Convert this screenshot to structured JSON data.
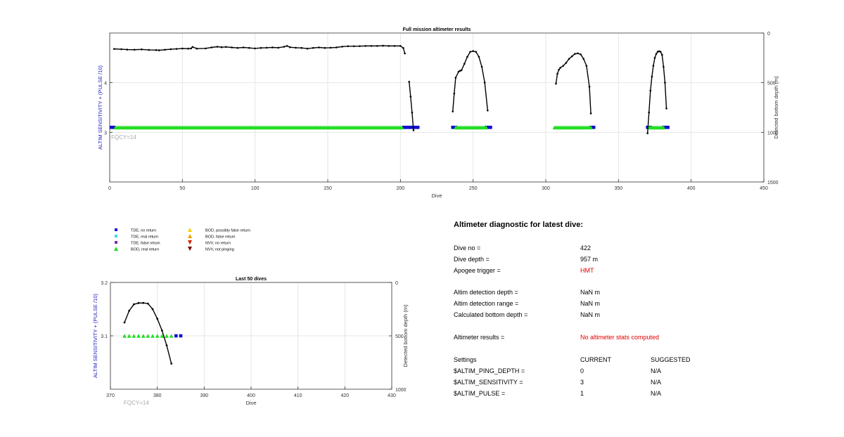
{
  "chart_data": [
    {
      "type": "scatter",
      "title": "Full mission altimeter results",
      "xlabel": "Dive",
      "ylabel": "ALTIM SENSITIVITY + (PULSE /10)",
      "y2label": "Detected bottom depth (m)",
      "xlim": [
        0,
        450
      ],
      "ylim": [
        2,
        5
      ],
      "y2lim": [
        1500,
        0
      ],
      "xticks": [
        0,
        50,
        100,
        150,
        200,
        250,
        300,
        350,
        400,
        450
      ],
      "yticks": [
        3,
        4
      ],
      "y2ticks": [
        0,
        500,
        1000,
        1500
      ],
      "annotation": "FQCY=14",
      "grid": true,
      "series": [
        {
          "name": "TDE, no return",
          "marker": "square",
          "color": "#1010d0",
          "y": 3.1,
          "ranges": [
            [
              1,
              3
            ],
            [
              202,
              212
            ],
            [
              236,
              238
            ],
            [
              259,
              262
            ],
            [
              331,
              333
            ],
            [
              370,
              372
            ],
            [
              381,
              384
            ]
          ]
        },
        {
          "name": "BOD, real return",
          "marker": "triangle",
          "color": "#22dd22",
          "y": 3.1,
          "ranges": [
            [
              4,
              201
            ],
            [
              238,
              259
            ],
            [
              306,
              331
            ],
            [
              371,
              381
            ]
          ]
        },
        {
          "name": "Detected bottom depth",
          "axis": "right",
          "style": "line-dots",
          "color": "#000000",
          "segments": [
            {
              "x": [
                3,
                8,
                12,
                17,
                22,
                27,
                32,
                34,
                38,
                42,
                46,
                50,
                54,
                56,
                57,
                60,
                66,
                70,
                74,
                77,
                80,
                84,
                88,
                92,
                96,
                100,
                104,
                108,
                112,
                116,
                120,
                122,
                124,
                128,
                132,
                136,
                140,
                144,
                148,
                152,
                156,
                160,
                164,
                168,
                172,
                176,
                180,
                184,
                188,
                192,
                196,
                200,
                202,
                203
              ],
              "y": [
                160,
                163,
                167,
                168,
                165,
                170,
                172,
                174,
                168,
                163,
                160,
                156,
                157,
                155,
                140,
                157,
                155,
                145,
                138,
                143,
                140,
                145,
                150,
                145,
                150,
                155,
                150,
                148,
                145,
                148,
                138,
                130,
                143,
                148,
                150,
                157,
                150,
                145,
                150,
                148,
                145,
                137,
                133,
                133,
                132,
                130,
                130,
                130,
                128,
                130,
                130,
                130,
                152,
                205
              ]
            },
            {
              "x": [
                206,
                207,
                208,
                209
              ],
              "y": [
                490,
                640,
                800,
                980
              ]
            },
            {
              "x": [
                236,
                237,
                238,
                240,
                241,
                242,
                244,
                246,
                248,
                250,
                252,
                254,
                256,
                258,
                260
              ],
              "y": [
                790,
                610,
                450,
                390,
                380,
                375,
                310,
                240,
                190,
                182,
                190,
                240,
                340,
                500,
                780
              ]
            },
            {
              "x": [
                307,
                308,
                309,
                310,
                312,
                314,
                316,
                318,
                320,
                322,
                324,
                326,
                328,
                330,
                331
              ],
              "y": [
                510,
                410,
                370,
                350,
                330,
                300,
                260,
                235,
                210,
                205,
                215,
                260,
                330,
                540,
                810
              ]
            },
            {
              "x": [
                370,
                371,
                372,
                373,
                374,
                375,
                376,
                377,
                378,
                379,
                380,
                381,
                382,
                383
              ],
              "y": [
                1010,
                800,
                580,
                440,
                330,
                250,
                210,
                188,
                183,
                190,
                220,
                340,
                500,
                760
              ]
            }
          ]
        }
      ]
    },
    {
      "type": "scatter",
      "title": "Last 50 dives",
      "xlabel": "Dive",
      "ylabel": "ALTIM SENSITIVITY + (PULSE /10)",
      "y2label": "Detected bottom depth (m)",
      "xlim": [
        370,
        430
      ],
      "ylim": [
        3,
        3.2
      ],
      "y2lim": [
        1000,
        0
      ],
      "xticks": [
        370,
        380,
        390,
        400,
        410,
        420,
        430
      ],
      "yticks": [
        3.1,
        3.2
      ],
      "y2ticks": [
        0,
        500,
        1000
      ],
      "annotation": "FQCY=14",
      "grid": true,
      "series": [
        {
          "name": "BOD, real return",
          "marker": "triangle",
          "color": "#22dd22",
          "y": 3.1,
          "x": [
            373,
            374,
            375,
            376,
            377,
            378,
            379,
            380,
            381,
            382,
            383
          ]
        },
        {
          "name": "TDE, no return",
          "marker": "square",
          "color": "#1010d0",
          "y": 3.1,
          "x": [
            384,
            385
          ]
        },
        {
          "name": "Detected bottom depth",
          "axis": "right",
          "style": "line-dots",
          "color": "#000000",
          "x": [
            373,
            374,
            375,
            376,
            377,
            378,
            379,
            380,
            381,
            382,
            383
          ],
          "y": [
            375,
            265,
            205,
            193,
            192,
            198,
            250,
            340,
            450,
            590,
            760
          ]
        }
      ]
    }
  ],
  "legend": {
    "items": [
      {
        "label": "TDE, no return",
        "marker": "square",
        "color": "#1a1aff"
      },
      {
        "label": "TDE, real return",
        "marker": "square",
        "color": "#3fd7ef"
      },
      {
        "label": "TDE, false return",
        "marker": "square",
        "color": "#7a2fb8"
      },
      {
        "label": "BOD, real return",
        "marker": "triangle-up",
        "color": "#22dd22"
      },
      {
        "label": "BOD, possibly false return",
        "marker": "triangle-up",
        "color": "#f5d000"
      },
      {
        "label": "BOD, false return",
        "marker": "triangle-up",
        "color": "#f0a000"
      },
      {
        "label": "NVV, no return",
        "marker": "triangle-down",
        "color": "#d42000"
      },
      {
        "label": "NVV, not pinging",
        "marker": "triangle-down",
        "color": "#7a0000"
      }
    ]
  },
  "diagnostic": {
    "title": "Altimeter diagnostic for latest dive:",
    "dive_no_label": "Dive no =",
    "dive_no": "422",
    "dive_depth_label": "Dive depth =",
    "dive_depth": "957 m",
    "apogee_label": "Apogee trigger =",
    "apogee": "HMT",
    "detection_depth_label": "Altim detection depth =",
    "detection_depth": "NaN m",
    "detection_range_label": "Altim detection range =",
    "detection_range": "NaN m",
    "bottom_depth_label": "Calculated bottom depth =",
    "bottom_depth": "NaN m",
    "results_label": "Altimeter results =",
    "results": "No altimeter stats computed",
    "settings_label": "Settings",
    "current_label": "CURRENT",
    "suggested_label": "SUGGESTED",
    "settings": [
      {
        "name": "$ALTIM_PING_DEPTH =",
        "current": "0",
        "suggested": "N/A"
      },
      {
        "name": "$ALTIM_SENSITIVITY =",
        "current": "3",
        "suggested": "N/A"
      },
      {
        "name": "$ALTIM_PULSE =",
        "current": "1",
        "suggested": "N/A"
      }
    ]
  },
  "colors": {
    "accent_red": "#e00000",
    "axis_label_blue": "#2020c0",
    "grid": "#e6e6e6"
  }
}
